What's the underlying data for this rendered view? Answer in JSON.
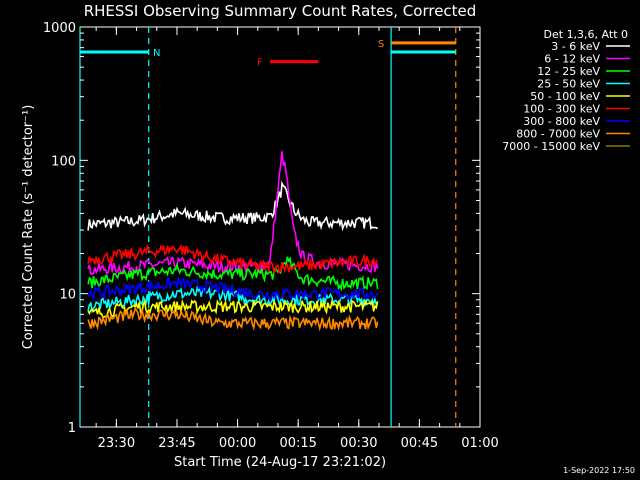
{
  "chart_data": {
    "type": "line",
    "title": "RHESSI Observing Summary Count Rates, Corrected",
    "xlabel": "Start Time (24-Aug-17 23:21:02)",
    "ylabel": "Corrected Count Rate (s⁻¹ detector⁻¹)",
    "ylog": true,
    "ylim": [
      1,
      1000
    ],
    "xlim": [
      "23:21",
      "01:00"
    ],
    "x_ticks": [
      "23:30",
      "23:45",
      "00:00",
      "00:15",
      "00:30",
      "00:45",
      "01:00"
    ],
    "y_ticks": [
      "1",
      "10",
      "100",
      "1000"
    ],
    "legend_title": "Det 1,3,6, Att 0",
    "legend_position": "right",
    "date_stamp": "1-Sep-2022 17:50",
    "series": [
      {
        "name": "3 - 6 keV",
        "color": "#ffffff",
        "x": [
          "23:23",
          "23:35",
          "23:45",
          "23:55",
          "00:05",
          "00:08",
          "00:10",
          "00:11",
          "00:12",
          "00:14",
          "00:16",
          "00:18",
          "00:25",
          "00:35"
        ],
        "y": [
          33,
          35,
          40,
          37,
          37,
          38,
          50,
          62,
          55,
          42,
          36,
          34,
          34,
          34
        ]
      },
      {
        "name": "6 - 12 keV",
        "color": "#ff00ff",
        "x": [
          "23:23",
          "23:35",
          "23:45",
          "23:55",
          "00:05",
          "00:08",
          "00:10",
          "00:11",
          "00:12",
          "00:13",
          "00:14",
          "00:16",
          "00:20",
          "00:35"
        ],
        "y": [
          15,
          16,
          17,
          16,
          16,
          17,
          60,
          110,
          80,
          45,
          28,
          19,
          17,
          16
        ]
      },
      {
        "name": "12 - 25 keV",
        "color": "#00ff00",
        "x": [
          "23:23",
          "23:35",
          "23:45",
          "23:55",
          "00:05",
          "00:10",
          "00:12",
          "00:16",
          "00:25",
          "00:35"
        ],
        "y": [
          12,
          14,
          15,
          14,
          14,
          14,
          18,
          13,
          12,
          12
        ]
      },
      {
        "name": "25 - 50 keV",
        "color": "#00ffff",
        "x": [
          "23:23",
          "23:35",
          "23:45",
          "23:55",
          "00:05",
          "00:15",
          "00:25",
          "00:35"
        ],
        "y": [
          8,
          9,
          10,
          10,
          9,
          9,
          9,
          9
        ]
      },
      {
        "name": "50 - 100 keV",
        "color": "#ffff00",
        "x": [
          "23:23",
          "23:35",
          "23:45",
          "23:55",
          "00:05",
          "00:15",
          "00:25",
          "00:35"
        ],
        "y": [
          7,
          8,
          8,
          8,
          8,
          8,
          8,
          8
        ]
      },
      {
        "name": "100 - 300 keV",
        "color": "#ff0000",
        "x": [
          "23:23",
          "23:35",
          "23:45",
          "23:55",
          "00:05",
          "00:15",
          "00:25",
          "00:35"
        ],
        "y": [
          18,
          20,
          22,
          18,
          16,
          16,
          17,
          18
        ]
      },
      {
        "name": "300 - 800 keV",
        "color": "#0000ff",
        "x": [
          "23:23",
          "23:35",
          "23:45",
          "23:55",
          "00:05",
          "00:15",
          "00:25",
          "00:35"
        ],
        "y": [
          10,
          11,
          12,
          11,
          10,
          10,
          10,
          10
        ]
      },
      {
        "name": "800 - 7000 keV",
        "color": "#ff8800",
        "x": [
          "23:23",
          "23:35",
          "23:45",
          "23:55",
          "00:05",
          "00:15",
          "00:25",
          "00:35"
        ],
        "y": [
          6,
          7,
          7,
          6,
          6,
          6,
          6,
          6
        ]
      },
      {
        "name": "7000 - 15000 keV",
        "color": "#808000",
        "x": [],
        "y": []
      }
    ],
    "annotations": [
      {
        "label": "N",
        "color": "#00ffff",
        "from": "23:21",
        "to": "23:38",
        "y": 650
      },
      {
        "label": "F",
        "color": "#ff0000",
        "from": "00:08",
        "to": "00:20",
        "y": 550
      },
      {
        "label": "S",
        "color": "#ff8800",
        "from": "00:38",
        "to": "00:54",
        "y": 760
      },
      {
        "label": "",
        "color": "#00ffff",
        "from": "00:38",
        "to": "00:54",
        "y": 650
      }
    ],
    "vertical_lines": [
      {
        "x": "23:21",
        "color": "#00ffff",
        "style": "solid"
      },
      {
        "x": "23:38",
        "color": "#00ffff",
        "style": "dashed"
      },
      {
        "x": "00:38",
        "color": "#00ffff",
        "style": "solid"
      },
      {
        "x": "00:54",
        "color": "#ff8800",
        "style": "dashed"
      }
    ]
  }
}
